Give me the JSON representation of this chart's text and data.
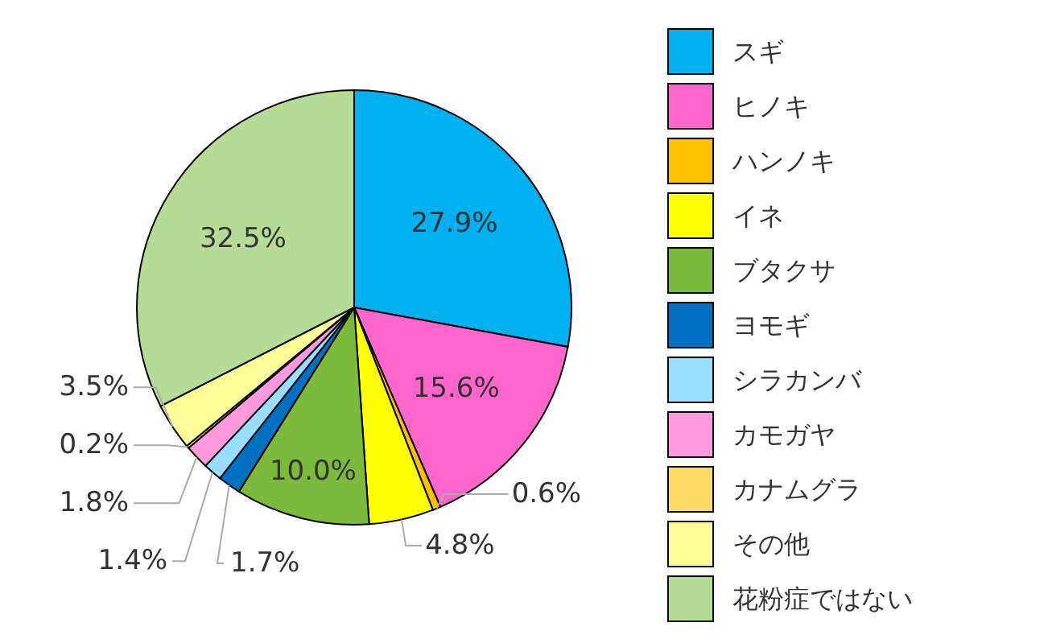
{
  "chart_data": {
    "type": "pie",
    "categories": [
      "スギ",
      "ヒノキ",
      "ハンノキ",
      "イネ",
      "ブタクサ",
      "ヨモギ",
      "シラカンバ",
      "カモガヤ",
      "カナムグラ",
      "その他",
      "花粉症ではない"
    ],
    "values": [
      27.9,
      15.6,
      0.6,
      4.8,
      10.0,
      1.7,
      1.4,
      1.8,
      0.2,
      3.5,
      32.5
    ],
    "value_labels": [
      "27.9%",
      "15.6%",
      "0.6%",
      "4.8%",
      "10.0%",
      "1.7%",
      "1.4%",
      "1.8%",
      "0.2%",
      "3.5%",
      "32.5%"
    ],
    "colors": [
      "#00b0f0",
      "#ff66cc",
      "#ffc000",
      "#ffff00",
      "#7cba3c",
      "#0070c0",
      "#99ddff",
      "#ff99dd",
      "#ffd966",
      "#ffff99",
      "#b4dc96"
    ],
    "legend": "right"
  }
}
